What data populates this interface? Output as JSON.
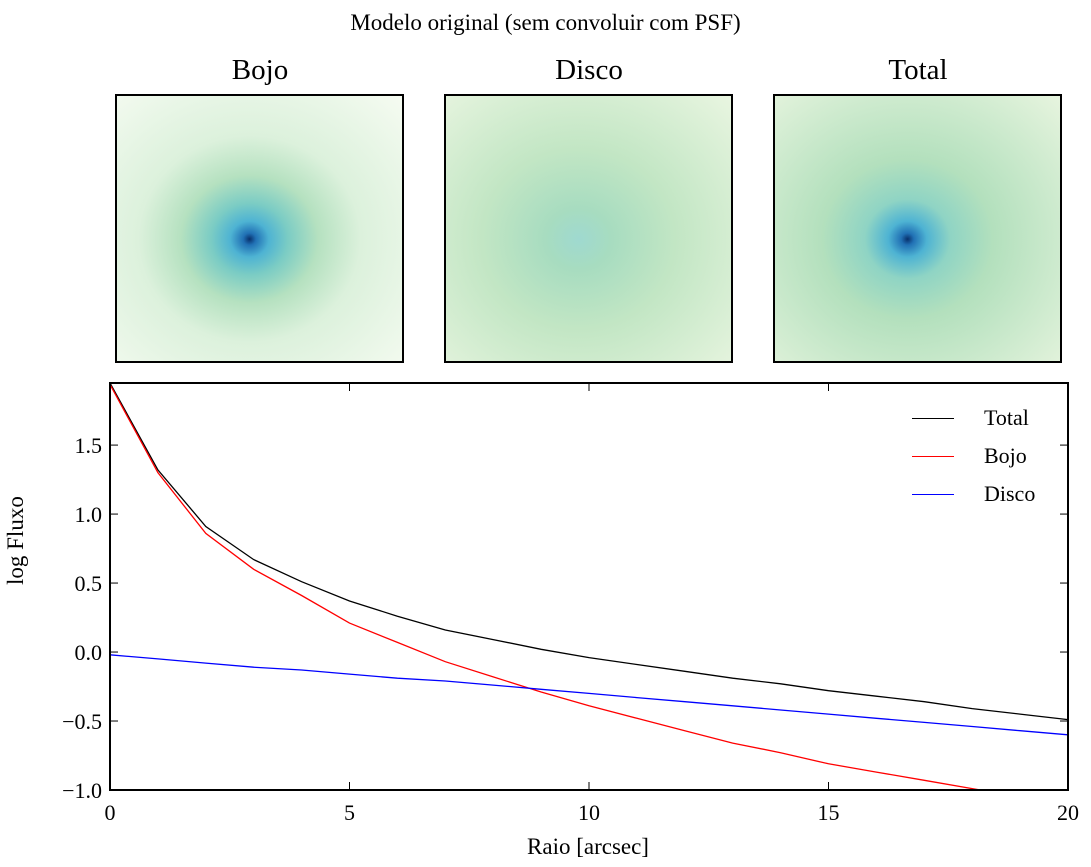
{
  "figure": {
    "suptitle": "Modelo original (sem convoluir com PSF)",
    "panels": [
      {
        "title": "Bojo"
      },
      {
        "title": "Disco"
      },
      {
        "title": "Total"
      }
    ]
  },
  "chart_data": {
    "type": "line",
    "xlabel": "Raio [arcsec]",
    "ylabel": "log Fluxo",
    "xlim": [
      0,
      20
    ],
    "ylim": [
      -1.0,
      1.95
    ],
    "xticks": [
      0,
      5,
      10,
      15,
      20
    ],
    "xtick_labels": [
      "0",
      "5",
      "10",
      "15",
      "20"
    ],
    "yticks": [
      -1.0,
      -0.5,
      0.0,
      0.5,
      1.0,
      1.5
    ],
    "ytick_labels": [
      "−1.0",
      "−0.5",
      "0.0",
      "0.5",
      "1.0",
      "1.5"
    ],
    "legend_position": "top-right",
    "x": [
      0,
      1,
      2,
      3,
      4,
      5,
      6,
      7,
      8,
      9,
      10,
      11,
      12,
      13,
      14,
      15,
      16,
      17,
      18,
      19,
      20
    ],
    "series": [
      {
        "name": "Total",
        "color": "#000000",
        "values": [
          1.95,
          1.32,
          0.91,
          0.67,
          0.51,
          0.37,
          0.26,
          0.16,
          0.09,
          0.02,
          -0.04,
          -0.09,
          -0.14,
          -0.19,
          -0.23,
          -0.28,
          -0.32,
          -0.36,
          -0.41,
          -0.45,
          -0.49
        ]
      },
      {
        "name": "Bojo",
        "color": "#ff0000",
        "values": [
          1.94,
          1.3,
          0.86,
          0.6,
          0.41,
          0.21,
          0.07,
          -0.07,
          -0.18,
          -0.29,
          -0.39,
          -0.48,
          -0.57,
          -0.66,
          -0.73,
          -0.81,
          -0.87,
          -0.93,
          -0.99,
          -1.05,
          -1.11
        ]
      },
      {
        "name": "Disco",
        "color": "#0000ff",
        "values": [
          -0.02,
          -0.05,
          -0.08,
          -0.11,
          -0.13,
          -0.16,
          -0.19,
          -0.21,
          -0.24,
          -0.27,
          -0.3,
          -0.33,
          -0.36,
          -0.39,
          -0.42,
          -0.45,
          -0.48,
          -0.51,
          -0.54,
          -0.57,
          -0.6
        ]
      }
    ]
  }
}
